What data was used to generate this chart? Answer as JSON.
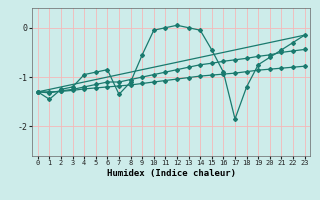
{
  "xlabel": "Humidex (Indice chaleur)",
  "xlim": [
    -0.5,
    23.5
  ],
  "ylim": [
    -2.6,
    0.4
  ],
  "yticks": [
    0,
    -1,
    -2
  ],
  "xticks": [
    0,
    1,
    2,
    3,
    4,
    5,
    6,
    7,
    8,
    9,
    10,
    11,
    12,
    13,
    14,
    15,
    16,
    17,
    18,
    19,
    20,
    21,
    22,
    23
  ],
  "bg_color": "#cdecea",
  "grid_color": "#f5b8b8",
  "line_color": "#1a7a6e",
  "series": [
    {
      "x": [
        0,
        1,
        2,
        3,
        4,
        5,
        6,
        7,
        8,
        9,
        10,
        11,
        12,
        13,
        14,
        15,
        16,
        17,
        18,
        19,
        20,
        21,
        22,
        23
      ],
      "y": [
        -1.3,
        -1.45,
        -1.25,
        -1.2,
        -0.95,
        -0.9,
        -0.85,
        -1.35,
        -1.1,
        -0.55,
        -0.05,
        0.0,
        0.05,
        0.0,
        -0.05,
        -0.45,
        -0.9,
        -1.85,
        -1.2,
        -0.75,
        -0.6,
        -0.45,
        -0.3,
        -0.15
      ],
      "marker": true
    },
    {
      "x": [
        0,
        23
      ],
      "y": [
        -1.3,
        -0.15
      ],
      "marker": false
    },
    {
      "x": [
        0,
        1,
        2,
        3,
        4,
        5,
        6,
        7,
        8,
        9,
        10,
        11,
        12,
        13,
        14,
        15,
        16,
        17,
        18,
        19,
        20,
        21,
        22,
        23
      ],
      "y": [
        -1.3,
        -1.32,
        -1.28,
        -1.25,
        -1.2,
        -1.15,
        -1.1,
        -1.1,
        -1.05,
        -1.0,
        -0.95,
        -0.9,
        -0.85,
        -0.8,
        -0.75,
        -0.72,
        -0.68,
        -0.65,
        -0.62,
        -0.58,
        -0.55,
        -0.5,
        -0.47,
        -0.44
      ],
      "marker": true
    },
    {
      "x": [
        0,
        1,
        2,
        3,
        4,
        5,
        6,
        7,
        8,
        9,
        10,
        11,
        12,
        13,
        14,
        15,
        16,
        17,
        18,
        19,
        20,
        21,
        22,
        23
      ],
      "y": [
        -1.3,
        -1.3,
        -1.29,
        -1.27,
        -1.24,
        -1.22,
        -1.2,
        -1.18,
        -1.16,
        -1.13,
        -1.1,
        -1.07,
        -1.04,
        -1.01,
        -0.98,
        -0.96,
        -0.94,
        -0.92,
        -0.89,
        -0.86,
        -0.84,
        -0.82,
        -0.8,
        -0.78
      ],
      "marker": true
    }
  ]
}
